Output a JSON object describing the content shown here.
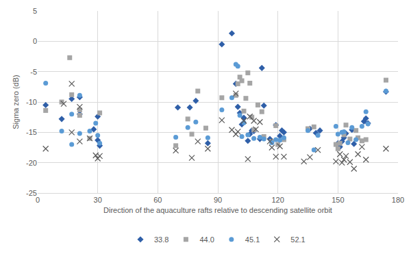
{
  "chart_data": {
    "type": "scatter",
    "x_label": "Direction of the aquaculture rafts relative to descending satellite orbit",
    "y_label": "Sigma zero (dB)",
    "xlim": [
      0,
      180
    ],
    "xticks": [
      0,
      30,
      60,
      90,
      120,
      150,
      180
    ],
    "ylim": [
      -25,
      5
    ],
    "yticks": [
      -25,
      -20,
      -15,
      -10,
      -5,
      0,
      5
    ],
    "grid": true,
    "legend": "bottom",
    "series": [
      {
        "name": "33.8",
        "color": "#2f5fa8",
        "marker": "diamond",
        "x": [
          4,
          12,
          17,
          21,
          21,
          28,
          30,
          30,
          31,
          70,
          76,
          79,
          85,
          92,
          97,
          99,
          100,
          101,
          102,
          103,
          105,
          106,
          107,
          108,
          111,
          112,
          113,
          116,
          119,
          121,
          122,
          123,
          136,
          139,
          141,
          150,
          151,
          152,
          153,
          154,
          157,
          158,
          163,
          164,
          165,
          174
        ],
        "values": [
          -10.5,
          -12.8,
          -9.5,
          -9.2,
          -12.0,
          -14.5,
          -12.4,
          -16.3,
          -17.2,
          -10.9,
          -10.9,
          -9.8,
          -16.8,
          -0.5,
          1.3,
          -7.0,
          -10.8,
          -11.8,
          -13.7,
          -12.6,
          -16.4,
          -15.3,
          -14.7,
          -14.8,
          -16.1,
          -4.4,
          -10.6,
          -16.1,
          -13.8,
          -15.6,
          -14.7,
          -15.0,
          -14.4,
          -15.1,
          -14.7,
          -16.8,
          -17.4,
          -16.5,
          -15.9,
          -15.2,
          -14.6,
          -16.9,
          -13.2,
          -12.7,
          -13.5,
          -8.3
        ]
      },
      {
        "name": "44.0",
        "color": "#a5a5a5",
        "marker": "square",
        "x": [
          4,
          12,
          16,
          17,
          21,
          21,
          26,
          31,
          69,
          75,
          77,
          80,
          84,
          92,
          99,
          100,
          101,
          102,
          103,
          104,
          105,
          106,
          107,
          108,
          110,
          112,
          113,
          117,
          119,
          120,
          123,
          135,
          138,
          149,
          150,
          151,
          153,
          154,
          156,
          159,
          160,
          162,
          164,
          174
        ],
        "values": [
          -11.4,
          -10.0,
          -2.7,
          -8.8,
          -11.3,
          -12.2,
          -16.0,
          -11.8,
          -17.2,
          -12.8,
          -15.3,
          -8.2,
          -14.3,
          -9.3,
          -8.9,
          -7.0,
          -5.9,
          -6.5,
          -11.5,
          -9.4,
          -5.2,
          -6.9,
          -12.5,
          -14.6,
          -10.5,
          -11.6,
          -15.7,
          -16.5,
          -13.9,
          -17.0,
          -16.2,
          -14.4,
          -14.1,
          -17.0,
          -17.7,
          -16.8,
          -15.4,
          -13.8,
          -16.1,
          -14.7,
          -15.9,
          -16.4,
          -16.2,
          -6.4
        ]
      },
      {
        "name": "45.1",
        "color": "#5b9bd5",
        "marker": "circle",
        "x": [
          4,
          12,
          17,
          17,
          21,
          21,
          26,
          29,
          30,
          31,
          69,
          75,
          79,
          85,
          92,
          97,
          99,
          100,
          101,
          102,
          103,
          105,
          108,
          111,
          113,
          117,
          119,
          121,
          123,
          135,
          138,
          140,
          149,
          150,
          152,
          153,
          155,
          157,
          159,
          162,
          164,
          165,
          174
        ],
        "values": [
          -6.9,
          -14.8,
          -17.0,
          -12.0,
          -8.9,
          -15.2,
          -14.8,
          -13.5,
          -15.5,
          -16.8,
          -15.8,
          -14.2,
          -13.3,
          -15.9,
          -11.3,
          -9.3,
          -3.8,
          -4.1,
          -12.2,
          -15.7,
          -13.4,
          -15.4,
          -16.0,
          -15.8,
          -16.1,
          -16.7,
          -16.2,
          -16.3,
          -15.9,
          -14.7,
          -17.9,
          -15.5,
          -14.0,
          -15.3,
          -15.0,
          -14.9,
          -16.7,
          -14.2,
          -16.2,
          -14.0,
          -11.6,
          -13.6,
          -8.2
        ]
      },
      {
        "name": "52.1",
        "color": "#595959",
        "marker": "x",
        "x": [
          4,
          13,
          17,
          17,
          21,
          21,
          26,
          29,
          30,
          31,
          69,
          77,
          80,
          85,
          92,
          97,
          99,
          99,
          100,
          103,
          105,
          106,
          108,
          109,
          111,
          116,
          117,
          119,
          121,
          123,
          133,
          136,
          140,
          149,
          151,
          152,
          153,
          154,
          156,
          158,
          160,
          162,
          164,
          174
        ],
        "values": [
          -17.7,
          -10.3,
          -7.0,
          -15.0,
          -10.8,
          -16.5,
          -16.0,
          -18.8,
          -19.3,
          -18.9,
          -18.0,
          -19.2,
          -16.5,
          -17.7,
          -13.0,
          -14.6,
          -8.6,
          -15.3,
          -14.9,
          -13.1,
          -19.4,
          -12.4,
          -13.1,
          -14.5,
          -13.3,
          -16.5,
          -17.5,
          -19.0,
          -17.3,
          -19.0,
          -19.8,
          -19.1,
          -17.9,
          -19.8,
          -18.6,
          -20.0,
          -19.5,
          -18.9,
          -19.9,
          -21.0,
          -18.6,
          -17.4,
          -19.5,
          -17.7
        ]
      }
    ]
  }
}
